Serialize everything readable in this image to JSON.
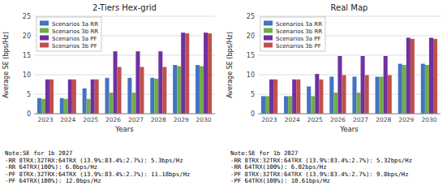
{
  "chart_data": [
    {
      "type": "bar",
      "title": "2-Tiers Hex-grid",
      "x_label": "Years",
      "y_label": "Average SE (bps/Hz)",
      "categories": [
        "2023",
        "2024",
        "2025",
        "2026",
        "2027",
        "2028",
        "2029",
        "2030"
      ],
      "series": [
        {
          "name": "Scenarios 3a RR",
          "color": "#4472C4",
          "values": [
            4.0,
            4.0,
            6.5,
            9.2,
            9.2,
            9.2,
            12.5,
            12.5
          ]
        },
        {
          "name": "Scenarios 3b RR",
          "color": "#70AD47",
          "values": [
            3.8,
            3.8,
            3.8,
            5.4,
            5.4,
            9.0,
            12.2,
            12.2
          ]
        },
        {
          "name": "Scenarios 3a PF",
          "color": "#7030A0",
          "values": [
            8.8,
            8.8,
            8.8,
            16.0,
            16.0,
            16.0,
            20.8,
            20.8
          ]
        },
        {
          "name": "Scenarios 3b PF",
          "color": "#C0504D",
          "values": [
            8.8,
            8.8,
            8.8,
            12.0,
            12.0,
            12.0,
            20.6,
            20.6
          ]
        }
      ],
      "ylim": [
        0,
        25
      ],
      "yticks": [
        0,
        5,
        10,
        15,
        20,
        25
      ],
      "grid": true,
      "legend": "top-left",
      "annotations": [
        "Note:SE for 1b 2027\n-RR 8TRX:32TRX:64TRX (13.9%:83.4%:2.7%): 5.3bps/Hz\n-RR 64TRX(100%): 6.0bps/Hz\n-PF 8TRX:32TRX:64TRX (13.9%:83.4%:2.7%): 11.18bps/Hz\n-PF 64TRX(100%): 12.0bps/Hz"
      ]
    },
    {
      "type": "bar",
      "title": "Real Map",
      "x_label": "Years",
      "y_label": "Average SE (bps/Hz)",
      "categories": [
        "2023",
        "2024",
        "2025",
        "2026",
        "2027",
        "2028",
        "2029",
        "2030"
      ],
      "series": [
        {
          "name": "Scenarios 3a RR",
          "color": "#4472C4",
          "values": [
            4.5,
            4.5,
            7.0,
            9.5,
            9.5,
            9.5,
            12.8,
            12.8
          ]
        },
        {
          "name": "Scenarios 3b RR",
          "color": "#70AD47",
          "values": [
            4.5,
            4.5,
            4.5,
            5.4,
            5.4,
            9.5,
            12.5,
            12.5
          ]
        },
        {
          "name": "Scenarios 3a PF",
          "color": "#7030A0",
          "values": [
            8.8,
            8.8,
            10.2,
            14.8,
            14.8,
            14.8,
            19.5,
            19.5
          ]
        },
        {
          "name": "Scenarios 3b PF",
          "color": "#C0504D",
          "values": [
            8.8,
            8.8,
            8.8,
            9.9,
            9.9,
            9.9,
            19.2,
            19.2
          ]
        }
      ],
      "ylim": [
        0,
        25
      ],
      "yticks": [
        0,
        5,
        10,
        15,
        20,
        25
      ],
      "grid": true,
      "legend": "top-left",
      "annotations": [
        "Note:SE for 1b 2027\n-RR 8TRX:32TRX:64TRX (13.9%:83.4%:2.7%): 5.32bps/Hz\n-RR 64TRX(100%): 6.02bps/Hz\n-PF 8TRX:32TRX:64TRX (13.9%:83.4%:2.7%): 9.8bps/Hz\n-PF 64TRX(100%): 10.61bps/Hz"
      ]
    }
  ]
}
